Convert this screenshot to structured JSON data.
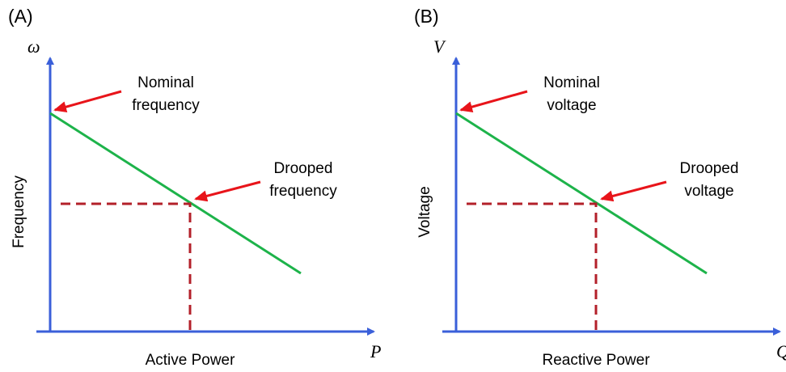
{
  "panels": [
    {
      "label": "(A)",
      "y_symbol": "ω",
      "y_label": "Frequency",
      "x_symbol": "P",
      "x_label": "Active Power",
      "annotations": [
        {
          "lines": [
            "Nominal",
            "frequency"
          ]
        },
        {
          "lines": [
            "Drooped",
            "frequency"
          ]
        }
      ]
    },
    {
      "label": "(B)",
      "y_symbol": "V",
      "y_label": "Voltage",
      "x_symbol": "Q",
      "x_label": "Reactive Power",
      "annotations": [
        {
          "lines": [
            "Nominal",
            "voltage"
          ]
        },
        {
          "lines": [
            "Drooped",
            "voltage"
          ]
        }
      ]
    }
  ]
}
